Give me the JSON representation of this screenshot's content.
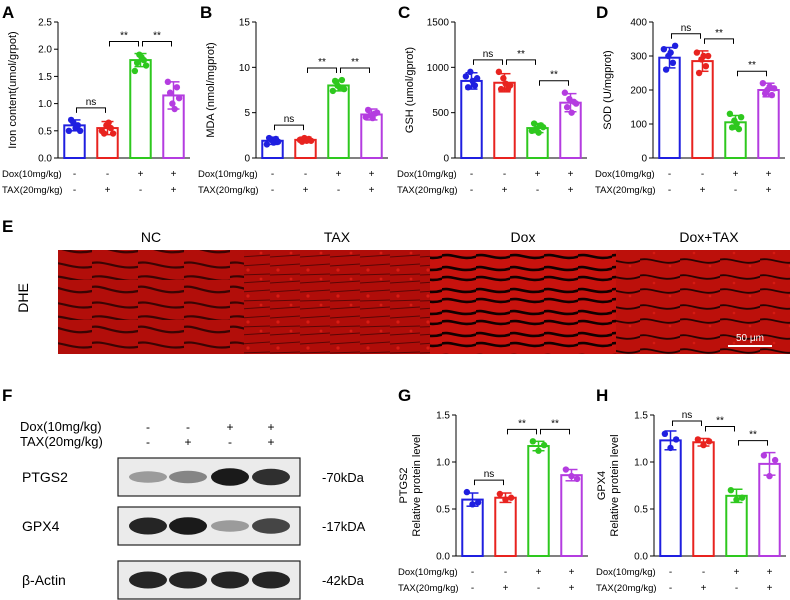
{
  "colors": {
    "NC": "#1f1fe0",
    "TAX": "#e8231f",
    "Dox": "#2ec81e",
    "Dox+TAX": "#b43ce0",
    "tissue": "#c4100c"
  },
  "condition_rows": {
    "dox_label": "Dox(10mg/kg)",
    "tax_label": "TAX(20mg/kg)",
    "dox": [
      "-",
      "-",
      "+",
      "+"
    ],
    "tax": [
      "-",
      "+",
      "-",
      "+"
    ]
  },
  "panels": {
    "A": "A",
    "B": "B",
    "C": "C",
    "D": "D",
    "E": "E",
    "F": "F",
    "G": "G",
    "H": "H"
  },
  "chart_data": [
    {
      "panel": "A",
      "type": "bar",
      "categories": [
        "NC",
        "TAX",
        "Dox",
        "Dox+TAX"
      ],
      "ylabel": "Iron content(umol/grpot)",
      "ylim": [
        0,
        2.5
      ],
      "yticks": [
        "0.0",
        "0.5",
        "1.0",
        "1.5",
        "2.0",
        "2.5"
      ],
      "values": [
        0.6,
        0.55,
        1.8,
        1.15
      ],
      "errors": [
        0.1,
        0.12,
        0.12,
        0.25
      ],
      "points": [
        [
          0.5,
          0.7,
          0.65,
          0.55,
          0.6,
          0.5
        ],
        [
          0.5,
          0.45,
          0.6,
          0.65,
          0.55,
          0.45
        ],
        [
          1.6,
          1.75,
          1.9,
          1.85,
          1.8,
          1.7
        ],
        [
          1.4,
          1.2,
          1.0,
          0.9,
          1.3,
          1.1
        ]
      ],
      "significance": [
        {
          "from": 0,
          "to": 1,
          "label": "ns"
        },
        {
          "from": 1,
          "to": 2,
          "label": "**"
        },
        {
          "from": 2,
          "to": 3,
          "label": "**"
        }
      ]
    },
    {
      "panel": "B",
      "type": "bar",
      "categories": [
        "NC",
        "TAX",
        "Dox",
        "Dox+TAX"
      ],
      "ylabel": "MDA (nmol/mgprot)",
      "ylim": [
        0,
        15
      ],
      "yticks": [
        "0",
        "5",
        "10",
        "15"
      ],
      "values": [
        1.9,
        2.0,
        8.0,
        4.8
      ],
      "errors": [
        0.4,
        0.3,
        0.6,
        0.6
      ],
      "points": [
        [
          1.5,
          2.2,
          2.0,
          1.7,
          2.1,
          1.8
        ],
        [
          2.0,
          1.8,
          2.2,
          1.9,
          2.1,
          1.9
        ],
        [
          7.4,
          8.5,
          8.0,
          7.8,
          8.6,
          7.6
        ],
        [
          4.5,
          5.3,
          4.7,
          4.4,
          4.9,
          5.0
        ]
      ],
      "significance": [
        {
          "from": 0,
          "to": 1,
          "label": "ns"
        },
        {
          "from": 1,
          "to": 2,
          "label": "**"
        },
        {
          "from": 2,
          "to": 3,
          "label": "**"
        }
      ]
    },
    {
      "panel": "C",
      "type": "bar",
      "categories": [
        "NC",
        "TAX",
        "Dox",
        "Dox+TAX"
      ],
      "ylabel": "GSH  (umol/gprot)",
      "ylim": [
        0,
        1500
      ],
      "yticks": [
        "0",
        "500",
        "1000",
        "1500"
      ],
      "values": [
        850,
        830,
        330,
        610
      ],
      "errors": [
        90,
        100,
        50,
        100
      ],
      "points": [
        [
          900,
          780,
          950,
          850,
          800,
          880
        ],
        [
          950,
          760,
          880,
          820,
          760,
          800
        ],
        [
          300,
          380,
          320,
          280,
          360,
          340
        ],
        [
          720,
          560,
          650,
          500,
          620,
          600
        ]
      ],
      "significance": [
        {
          "from": 0,
          "to": 1,
          "label": "ns"
        },
        {
          "from": 1,
          "to": 2,
          "label": "**"
        },
        {
          "from": 2,
          "to": 3,
          "label": "**"
        }
      ]
    },
    {
      "panel": "D",
      "type": "bar",
      "categories": [
        "NC",
        "TAX",
        "Dox",
        "Dox+TAX"
      ],
      "ylabel": "SOD (U/mgprot)",
      "ylim": [
        0,
        400
      ],
      "yticks": [
        "0",
        "100",
        "200",
        "300",
        "400"
      ],
      "values": [
        295,
        285,
        105,
        200
      ],
      "errors": [
        30,
        30,
        20,
        20
      ],
      "points": [
        [
          320,
          260,
          300,
          310,
          280,
          330
        ],
        [
          310,
          250,
          290,
          300,
          270,
          300
        ],
        [
          130,
          90,
          110,
          100,
          85,
          120
        ],
        [
          220,
          190,
          200,
          210,
          185,
          205
        ]
      ],
      "significance": [
        {
          "from": 0,
          "to": 1,
          "label": "ns"
        },
        {
          "from": 1,
          "to": 2,
          "label": "**"
        },
        {
          "from": 2,
          "to": 3,
          "label": "**"
        }
      ]
    },
    {
      "panel": "G",
      "type": "bar",
      "categories": [
        "NC",
        "TAX",
        "Dox",
        "Dox+TAX"
      ],
      "ylabel": "PTGS2\nRelative protein level",
      "ylim": [
        0,
        1.5
      ],
      "yticks": [
        "0.0",
        "0.5",
        "1.0",
        "1.5"
      ],
      "values": [
        0.6,
        0.62,
        1.17,
        0.86
      ],
      "errors": [
        0.07,
        0.05,
        0.05,
        0.06
      ],
      "points": [
        [
          0.68,
          0.55,
          0.57
        ],
        [
          0.66,
          0.6,
          0.62
        ],
        [
          1.22,
          1.12,
          1.18
        ],
        [
          0.92,
          0.85,
          0.82
        ]
      ],
      "significance": [
        {
          "from": 0,
          "to": 1,
          "label": "ns"
        },
        {
          "from": 1,
          "to": 2,
          "label": "**"
        },
        {
          "from": 2,
          "to": 3,
          "label": "**"
        }
      ]
    },
    {
      "panel": "H",
      "type": "bar",
      "categories": [
        "NC",
        "TAX",
        "Dox",
        "Dox+TAX"
      ],
      "ylabel": "GPX4\nRelative protein level",
      "ylim": [
        0,
        1.5
      ],
      "yticks": [
        "0.0",
        "0.5",
        "1.0",
        "1.5"
      ],
      "values": [
        1.23,
        1.21,
        0.64,
        0.98
      ],
      "errors": [
        0.1,
        0.04,
        0.07,
        0.12
      ],
      "points": [
        [
          1.3,
          1.15,
          1.24
        ],
        [
          1.24,
          1.18,
          1.22
        ],
        [
          0.7,
          0.6,
          0.62
        ],
        [
          1.07,
          0.85,
          1.02
        ]
      ],
      "significance": [
        {
          "from": 0,
          "to": 1,
          "label": "ns"
        },
        {
          "from": 1,
          "to": 2,
          "label": "**"
        },
        {
          "from": 2,
          "to": 3,
          "label": "**"
        }
      ]
    }
  ],
  "dhe": {
    "row_label": "DHE",
    "columns": [
      "NC",
      "TAX",
      "Dox",
      "Dox+TAX"
    ],
    "scale_bar": "50 μm"
  },
  "western": {
    "dox_label": "Dox(10mg/kg)",
    "tax_label": "TAX(20mg/kg)",
    "dox": [
      "-",
      "-",
      "+",
      "+"
    ],
    "tax": [
      "-",
      "+",
      "-",
      "+"
    ],
    "blots": [
      {
        "name": "PTGS2",
        "size": "-70kDa",
        "intensity": [
          0.35,
          0.45,
          0.95,
          0.85
        ]
      },
      {
        "name": "GPX4",
        "size": "-17kDA",
        "intensity": [
          0.9,
          0.95,
          0.35,
          0.75
        ]
      },
      {
        "name": "β-Actin",
        "size": "-42kDa",
        "intensity": [
          0.9,
          0.9,
          0.9,
          0.9
        ]
      }
    ]
  }
}
